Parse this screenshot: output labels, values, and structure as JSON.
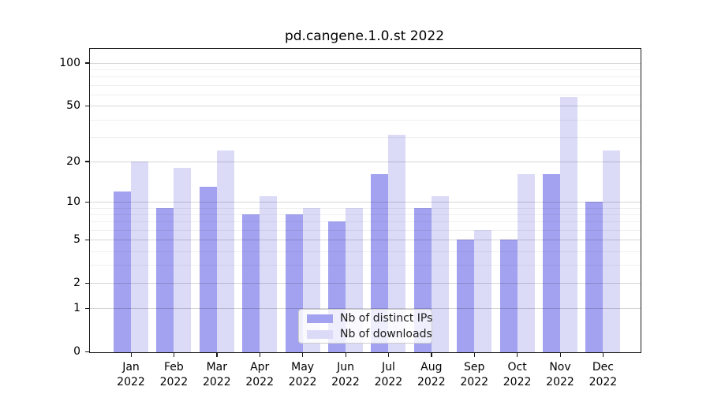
{
  "chart_data": {
    "type": "bar",
    "title": "pd.cangene.1.0.st 2022",
    "categories": [
      "Jan",
      "Feb",
      "Mar",
      "Apr",
      "May",
      "Jun",
      "Jul",
      "Aug",
      "Sep",
      "Oct",
      "Nov",
      "Dec"
    ],
    "category_year": "2022",
    "series": [
      {
        "name": "Nb of distinct IPs",
        "color": "#a2a2f0",
        "values": [
          12,
          9,
          13,
          8,
          8,
          7,
          16,
          9,
          5,
          5,
          16,
          10
        ]
      },
      {
        "name": "Nb of downloads",
        "color": "#dbdbf8",
        "values": [
          20,
          18,
          24,
          11,
          9,
          9,
          31,
          11,
          6,
          16,
          58,
          24
        ]
      }
    ],
    "xlabel": "",
    "ylabel": "",
    "y_axis": {
      "scale": "log10(value+1)",
      "tick_labels": [
        "100",
        "50",
        "20",
        "10",
        "5",
        "2",
        "1",
        "0"
      ],
      "tick_values": [
        100,
        50,
        20,
        10,
        5,
        2,
        1,
        0
      ],
      "minor_gridline_values": [
        3,
        4,
        6,
        7,
        8,
        9,
        30,
        40,
        60,
        70,
        80,
        90
      ],
      "ylim": [
        0,
        126
      ]
    },
    "grid": "on",
    "legend_position": "lower center"
  }
}
